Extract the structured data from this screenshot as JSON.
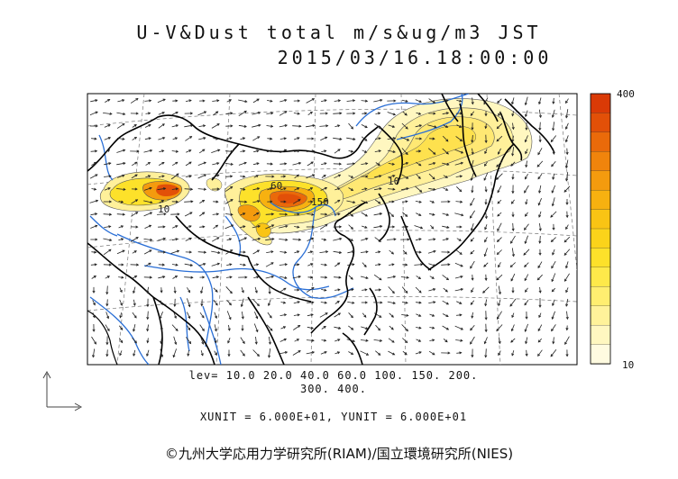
{
  "title": {
    "line1": "U-V&Dust total m/s&ug/m3 JST",
    "line2": "2015/03/16.18:00:00"
  },
  "legend": {
    "levels_line1": "lev= 10.0 20.0 40.0 60.0 100. 150. 200.",
    "levels_line2": "300. 400.",
    "units_line": "XUNIT = 6.000E+01, YUNIT = 6.000E+01",
    "colorbar_max": "400",
    "colorbar_min": "10",
    "colorbar_colors": [
      "#fffbe0",
      "#fff7c0",
      "#fff29a",
      "#ffee70",
      "#fee94a",
      "#fde12a",
      "#fbd31a",
      "#f9c414",
      "#f7b110",
      "#f49b0e",
      "#f0840c",
      "#ea6a0a",
      "#e25008",
      "#da3a06"
    ]
  },
  "map_labels": {
    "contour_a": "10",
    "contour_b": "60",
    "contour_c": "150"
  },
  "credit": "©九州大学応用力学研究所(RIAM)/国立環境研究所(NIES)"
}
